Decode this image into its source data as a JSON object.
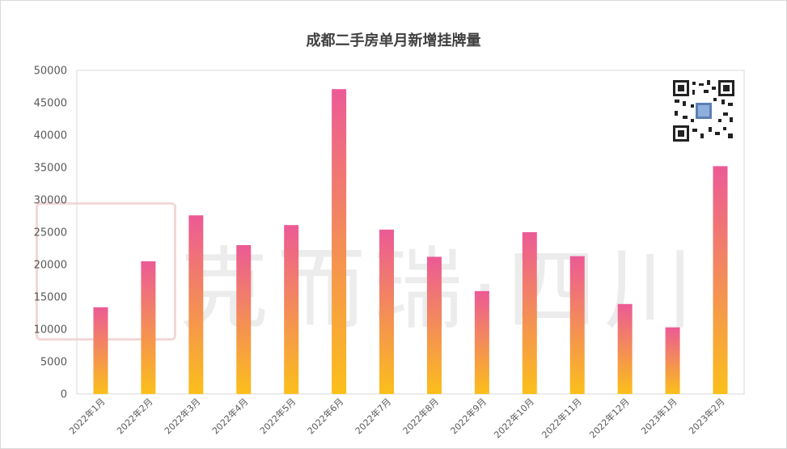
{
  "chart_data": {
    "type": "bar",
    "title": "成都二手房单月新增挂牌量",
    "categories": [
      "2022年1月",
      "2022年2月",
      "2022年3月",
      "2022年4月",
      "2022年5月",
      "2022年6月",
      "2022年7月",
      "2022年8月",
      "2022年9月",
      "2022年10月",
      "2022年11月",
      "2022年12月",
      "2023年1月",
      "2023年2月"
    ],
    "values": [
      13400,
      20500,
      27600,
      23000,
      26100,
      47100,
      25400,
      21200,
      15900,
      25000,
      21300,
      13900,
      10300,
      35200
    ],
    "ylim": [
      0,
      50000
    ],
    "yticks": [
      0,
      5000,
      10000,
      15000,
      20000,
      25000,
      30000,
      35000,
      40000,
      45000,
      50000
    ],
    "grid": false,
    "legend": "none",
    "colors": {
      "bar_top": "#ec5a96",
      "bar_bottom": "#fbbf1a",
      "axis": "#d9d9d9",
      "text": "#595959"
    }
  },
  "watermark": {
    "text": "克而瑞·四川",
    "seal_icon": "seal-stamp-icon"
  },
  "qr_code": {
    "icon": "qr-code-icon"
  }
}
